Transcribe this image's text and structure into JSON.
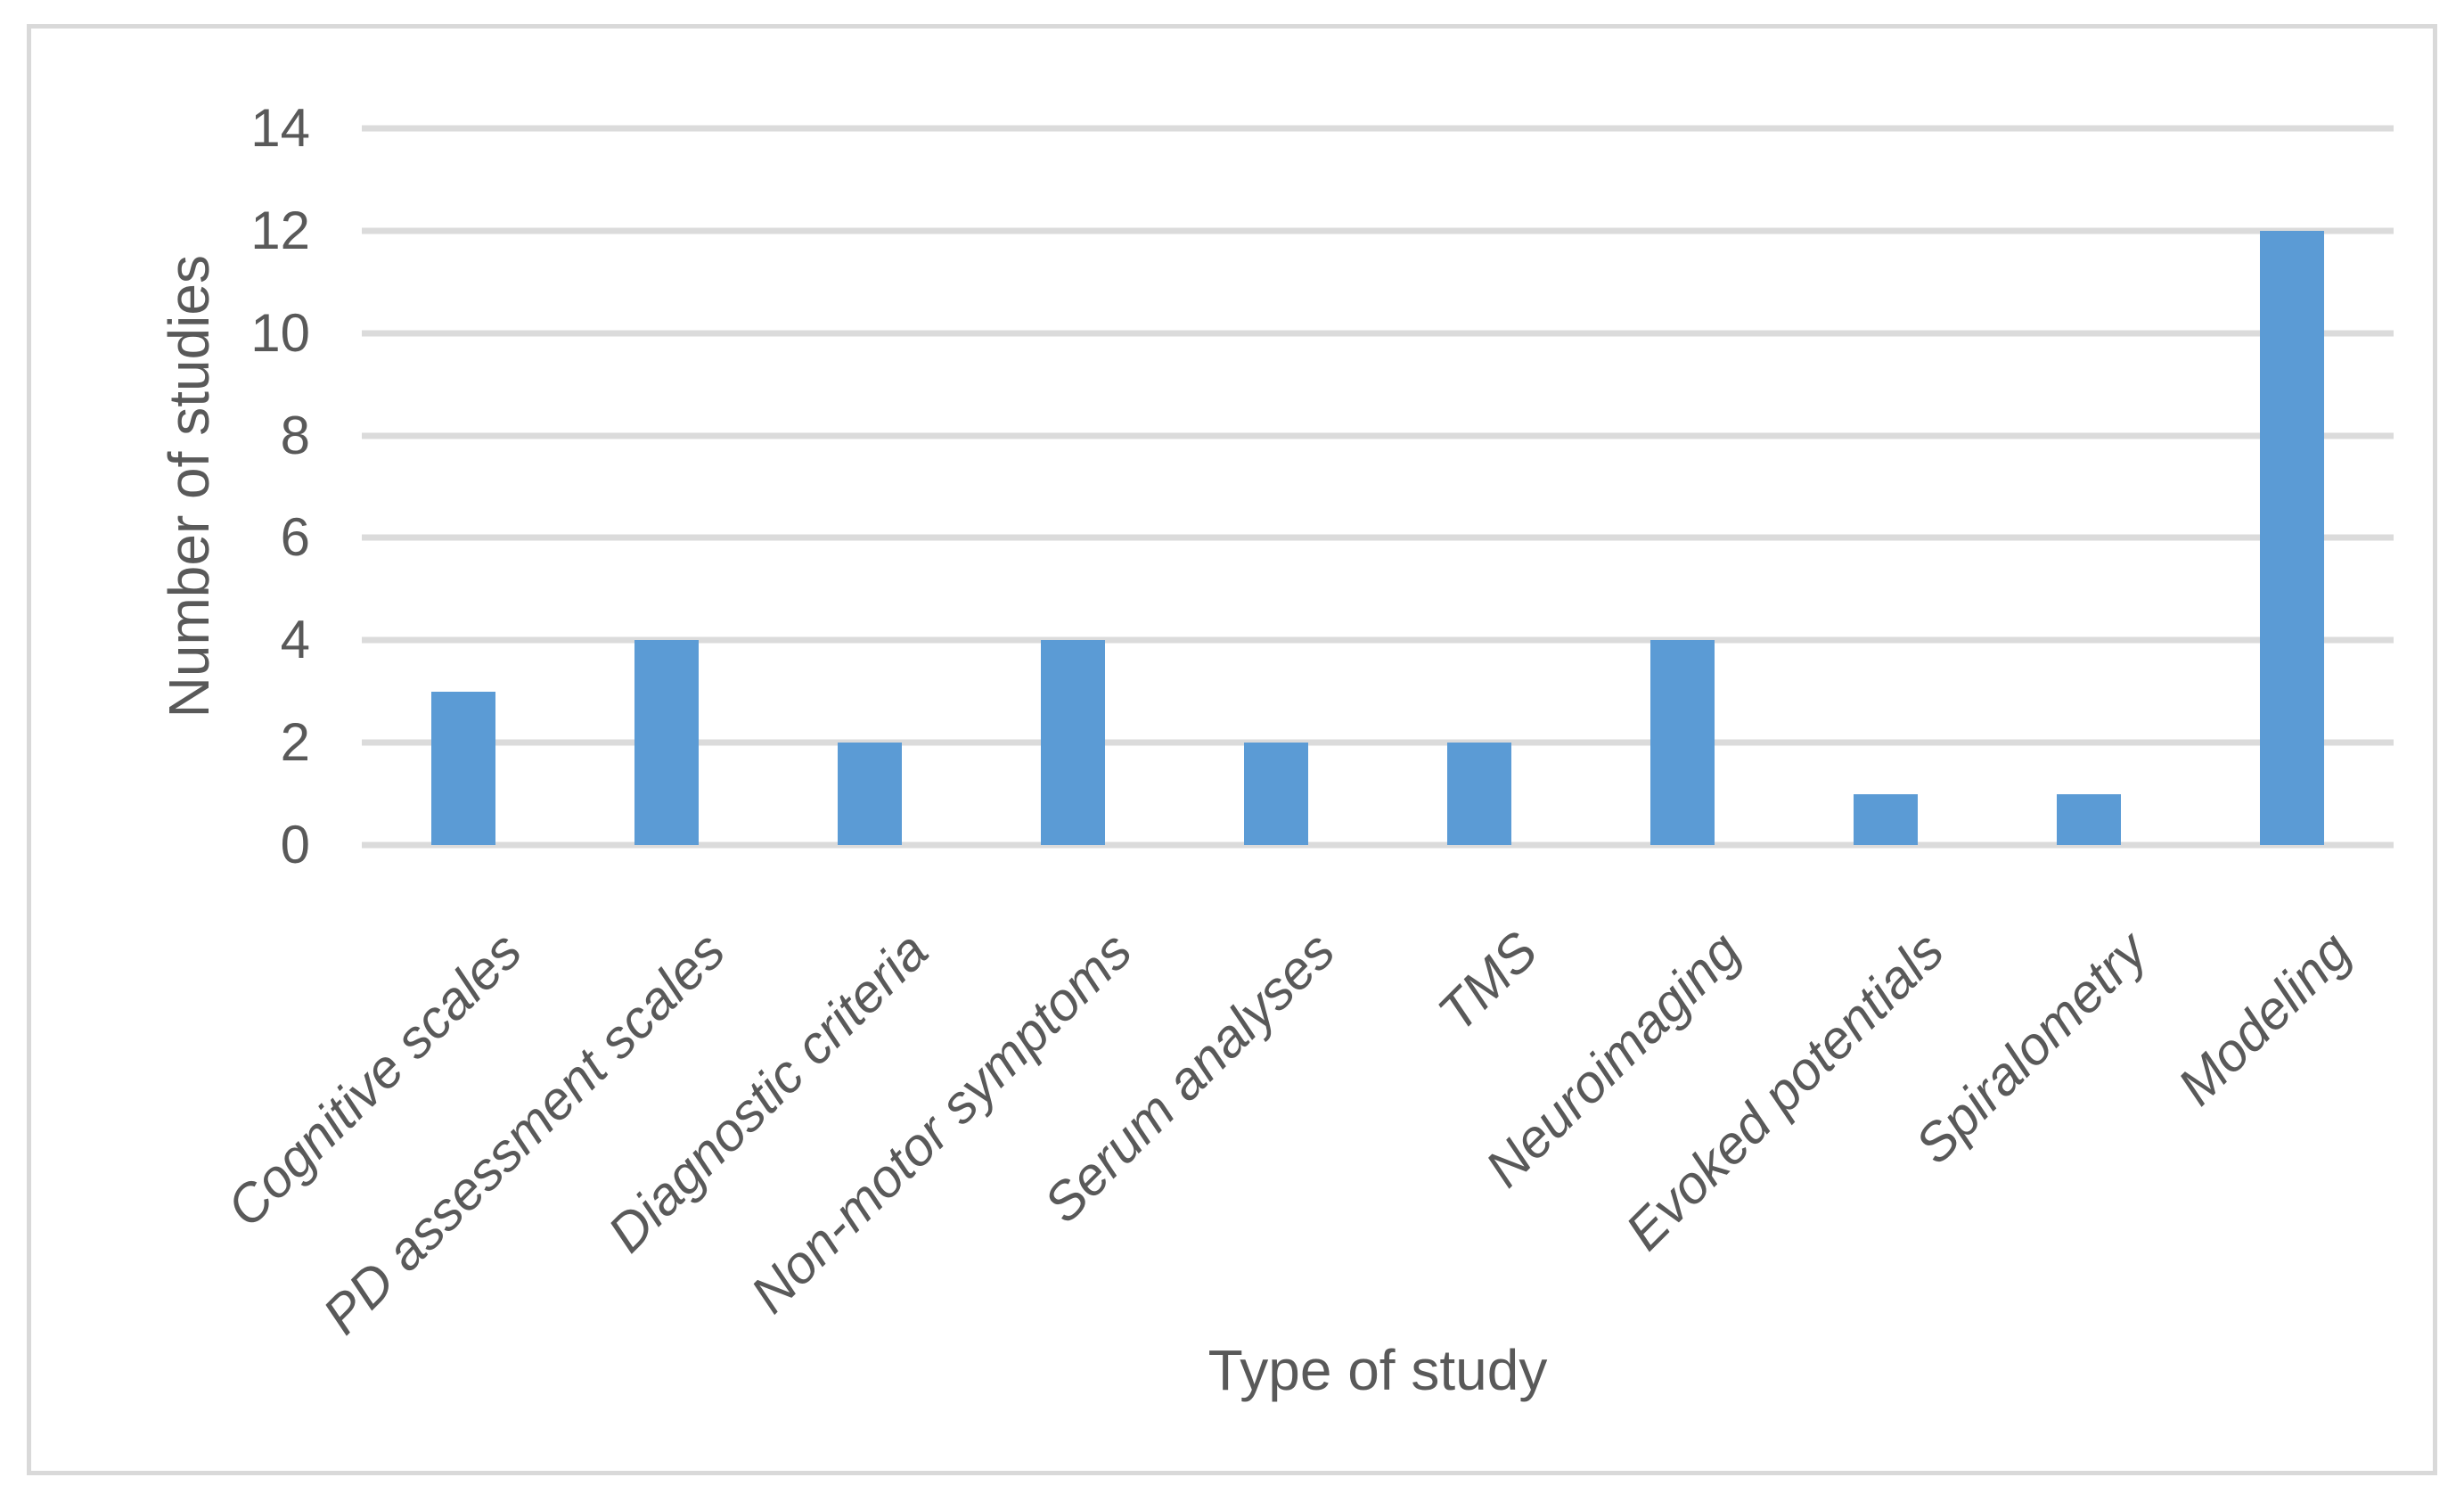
{
  "figure": {
    "background": "#FFFFFF",
    "border_color": "#D9D9D9"
  },
  "chart_data": {
    "type": "bar",
    "xlabel": "Type of study",
    "ylabel": "Number of studies",
    "categories": [
      "Cognitive scales",
      "PD assessment scales",
      "Diagnostic criteria",
      "Non-motor symptoms",
      "Serum analyses",
      "TMS",
      "Neuroimaging",
      "Evoked potentials",
      "Spiralometry",
      "Modeling"
    ],
    "values": [
      3,
      4,
      2,
      4,
      2,
      2,
      4,
      1,
      1,
      12
    ],
    "ylim": [
      0,
      14
    ],
    "yticks": [
      14,
      12,
      10,
      8,
      6,
      4,
      2,
      0
    ],
    "grid": "horizontal",
    "legend": "none",
    "category_label_rotation_deg": -45,
    "colors": {
      "bar": "#5B9BD5",
      "gridline": "#DBDBDB",
      "text": "#595959"
    }
  }
}
